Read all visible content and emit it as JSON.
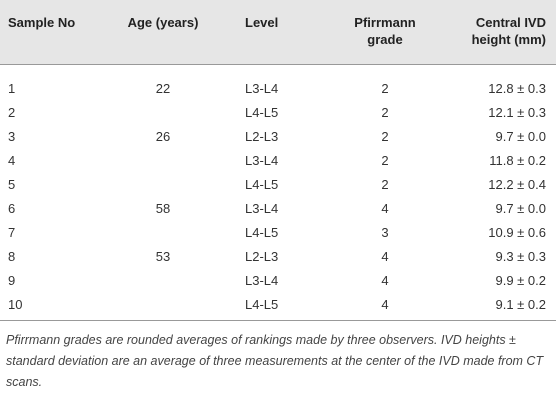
{
  "table": {
    "header": [
      "Sample No",
      "Age (years)",
      "Level",
      "Pfirrmann grade",
      "Central IVD height (mm)"
    ],
    "rows": [
      [
        "1",
        "22",
        "L3-L4",
        "2",
        "12.8 ± 0.3"
      ],
      [
        "2",
        null,
        "L4-L5",
        "2",
        "12.1 ± 0.3"
      ],
      [
        "3",
        "26",
        "L2-L3",
        "2",
        "9.7 ± 0.0"
      ],
      [
        "4",
        null,
        "L3-L4",
        "2",
        "11.8 ± 0.2"
      ],
      [
        "5",
        null,
        "L4-L5",
        "2",
        "12.2 ± 0.4"
      ],
      [
        "6",
        "58",
        "L3-L4",
        "4",
        "9.7 ± 0.0"
      ],
      [
        "7",
        null,
        "L4-L5",
        "3",
        "10.9 ± 0.6"
      ],
      [
        "8",
        "53",
        "L2-L3",
        "4",
        "9.3 ± 0.3"
      ],
      [
        "9",
        null,
        "L3-L4",
        "4",
        "9.9 ± 0.2"
      ],
      [
        "10",
        null,
        "L4-L5",
        "4",
        "9.1 ± 0.2"
      ]
    ],
    "footnote": "Pfirrmann grades are rounded averages of rankings made by three observers. IVD heights ± standard deviation are an average of three measurements at the center of the IVD made from CT scans."
  }
}
